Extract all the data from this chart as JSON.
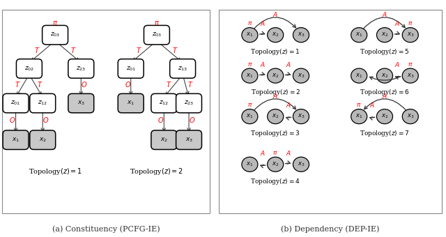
{
  "fig_width": 6.4,
  "fig_height": 3.4,
  "background": "#ffffff",
  "dep_topologies": [
    {
      "id": 1,
      "pi": 0,
      "arrows": [
        [
          0,
          1
        ],
        [
          0,
          2
        ]
      ],
      "arc_pairs": [
        [
          0,
          2
        ]
      ]
    },
    {
      "id": 2,
      "pi": 0,
      "arrows": [
        [
          0,
          1
        ],
        [
          1,
          2
        ]
      ],
      "arc_pairs": []
    },
    {
      "id": 3,
      "pi": 0,
      "arrows": [
        [
          0,
          2
        ],
        [
          2,
          1
        ]
      ],
      "arc_pairs": [
        [
          0,
          2
        ]
      ]
    },
    {
      "id": 4,
      "pi": 1,
      "arrows": [
        [
          1,
          0
        ],
        [
          1,
          2
        ]
      ],
      "arc_pairs": []
    },
    {
      "id": 5,
      "pi": 2,
      "arrows": [
        [
          0,
          2
        ],
        [
          1,
          2
        ]
      ],
      "arc_pairs": [
        [
          0,
          2
        ]
      ]
    },
    {
      "id": 6,
      "pi": 2,
      "arrows": [
        [
          2,
          0
        ],
        [
          2,
          1
        ]
      ],
      "arc_pairs": []
    },
    {
      "id": 7,
      "pi": 0,
      "arrows": [
        [
          2,
          0
        ],
        [
          1,
          0
        ]
      ],
      "arc_pairs": [
        [
          2,
          0
        ]
      ]
    }
  ]
}
